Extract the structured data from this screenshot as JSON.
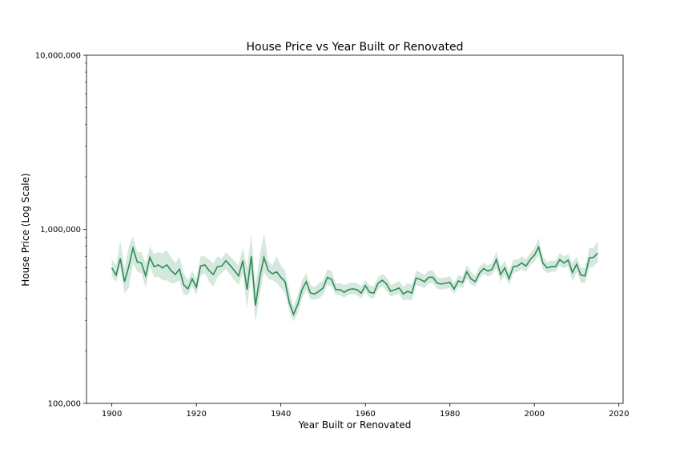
{
  "chart_data": {
    "type": "line",
    "title": "House Price vs Year Built or Renovated",
    "xlabel": "Year Built or Renovated",
    "ylabel": "House Price (Log Scale)",
    "xlim": [
      1894,
      2021
    ],
    "ylim": [
      100000,
      10000000
    ],
    "yscale": "log",
    "grid": false,
    "legend": "none",
    "x_ticks": [
      1900,
      1920,
      1940,
      1960,
      1980,
      2000,
      2020
    ],
    "y_ticks": [
      {
        "value": 100000,
        "label": "100,000"
      },
      {
        "value": 1000000,
        "label": "1,000,000"
      },
      {
        "value": 10000000,
        "label": "10,000,000"
      }
    ],
    "colors": {
      "line": "#2e8b57",
      "band": "#2e8b57"
    },
    "series": [
      {
        "x": [
          1900,
          1901,
          1902,
          1903,
          1904,
          1905,
          1906,
          1907,
          1908,
          1909,
          1910,
          1911,
          1912,
          1913,
          1914,
          1915,
          1916,
          1917,
          1918,
          1919,
          1920,
          1921,
          1922,
          1923,
          1924,
          1925,
          1926,
          1927,
          1928,
          1929,
          1930,
          1931,
          1932,
          1933,
          1934,
          1935,
          1936,
          1937,
          1938,
          1939,
          1940,
          1941,
          1942,
          1943,
          1944,
          1945,
          1946,
          1947,
          1948,
          1949,
          1950,
          1951,
          1952,
          1953,
          1954,
          1955,
          1956,
          1957,
          1958,
          1959,
          1960,
          1961,
          1962,
          1963,
          1964,
          1965,
          1966,
          1967,
          1968,
          1969,
          1970,
          1971,
          1972,
          1973,
          1974,
          1975,
          1976,
          1977,
          1978,
          1979,
          1980,
          1981,
          1982,
          1983,
          1984,
          1985,
          1986,
          1987,
          1988,
          1989,
          1990,
          1991,
          1992,
          1993,
          1994,
          1995,
          1996,
          1997,
          1998,
          1999,
          2000,
          2001,
          2002,
          2003,
          2004,
          2005,
          2006,
          2007,
          2008,
          2009,
          2010,
          2011,
          2012,
          2013,
          2014,
          2015
        ],
        "y": [
          600000,
          545000,
          680000,
          500000,
          610000,
          780000,
          650000,
          640000,
          540000,
          690000,
          610000,
          625000,
          600000,
          625000,
          580000,
          550000,
          590000,
          480000,
          455000,
          520000,
          465000,
          615000,
          625000,
          580000,
          550000,
          610000,
          615000,
          660000,
          620000,
          580000,
          540000,
          660000,
          450000,
          700000,
          365000,
          530000,
          690000,
          580000,
          555000,
          570000,
          530000,
          500000,
          380000,
          325000,
          370000,
          450000,
          500000,
          430000,
          425000,
          440000,
          460000,
          530000,
          515000,
          450000,
          450000,
          435000,
          450000,
          455000,
          450000,
          430000,
          475000,
          435000,
          430000,
          490000,
          510000,
          485000,
          440000,
          450000,
          460000,
          425000,
          440000,
          430000,
          525000,
          515000,
          500000,
          530000,
          530000,
          490000,
          485000,
          490000,
          495000,
          455000,
          505000,
          495000,
          570000,
          520000,
          500000,
          560000,
          595000,
          575000,
          590000,
          670000,
          550000,
          600000,
          520000,
          610000,
          615000,
          640000,
          615000,
          670000,
          710000,
          790000,
          640000,
          600000,
          610000,
          610000,
          670000,
          640000,
          665000,
          565000,
          630000,
          545000,
          540000,
          685000,
          690000,
          730000
        ],
        "lower": [
          540000,
          500000,
          600000,
          430000,
          460000,
          640000,
          570000,
          560000,
          460000,
          610000,
          530000,
          535000,
          510000,
          510000,
          490000,
          490000,
          510000,
          420000,
          420000,
          470000,
          420000,
          540000,
          560000,
          500000,
          470000,
          530000,
          560000,
          590000,
          550000,
          510000,
          480000,
          560000,
          350000,
          550000,
          290000,
          420000,
          570000,
          520000,
          510000,
          490000,
          460000,
          430000,
          340000,
          295000,
          330000,
          400000,
          450000,
          395000,
          395000,
          400000,
          420000,
          480000,
          470000,
          420000,
          420000,
          405000,
          420000,
          425000,
          420000,
          400000,
          440000,
          405000,
          400000,
          450000,
          470000,
          445000,
          410000,
          420000,
          425000,
          390000,
          395000,
          390000,
          480000,
          470000,
          460000,
          490000,
          490000,
          455000,
          450000,
          455000,
          460000,
          425000,
          470000,
          460000,
          520000,
          480000,
          470000,
          520000,
          555000,
          535000,
          550000,
          600000,
          500000,
          545000,
          480000,
          560000,
          570000,
          590000,
          570000,
          620000,
          650000,
          710000,
          590000,
          560000,
          570000,
          570000,
          620000,
          595000,
          615000,
          500000,
          570000,
          495000,
          490000,
          600000,
          610000,
          650000
        ],
        "upper": [
          670000,
          620000,
          860000,
          590000,
          800000,
          910000,
          740000,
          740000,
          640000,
          800000,
          720000,
          740000,
          730000,
          760000,
          690000,
          640000,
          700000,
          560000,
          510000,
          580000,
          520000,
          700000,
          700000,
          670000,
          640000,
          700000,
          680000,
          740000,
          700000,
          660000,
          620000,
          790000,
          600000,
          940000,
          480000,
          700000,
          950000,
          660000,
          620000,
          700000,
          620000,
          580000,
          440000,
          360000,
          420000,
          510000,
          560000,
          480000,
          465000,
          490000,
          510000,
          590000,
          575000,
          490000,
          490000,
          480000,
          490000,
          495000,
          490000,
          470000,
          510000,
          475000,
          470000,
          530000,
          555000,
          530000,
          480000,
          490000,
          505000,
          465000,
          490000,
          480000,
          580000,
          565000,
          545000,
          580000,
          580000,
          530000,
          525000,
          530000,
          540000,
          490000,
          545000,
          535000,
          620000,
          570000,
          540000,
          610000,
          640000,
          620000,
          640000,
          750000,
          610000,
          660000,
          570000,
          670000,
          670000,
          700000,
          670000,
          730000,
          780000,
          890000,
          700000,
          650000,
          660000,
          660000,
          730000,
          700000,
          720000,
          640000,
          700000,
          600000,
          600000,
          780000,
          780000,
          860000
        ]
      }
    ]
  }
}
